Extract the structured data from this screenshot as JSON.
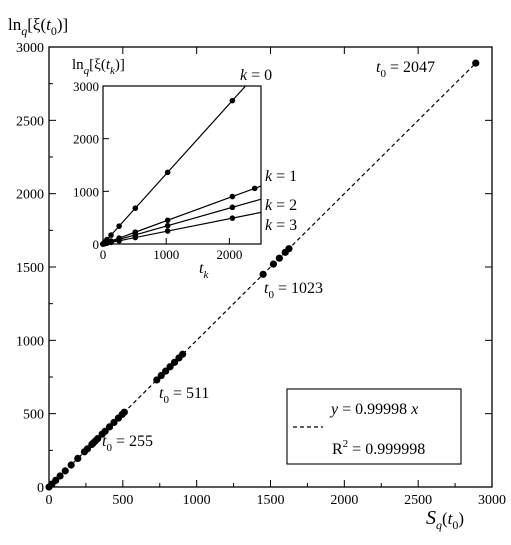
{
  "chart_data": [
    {
      "type": "scatter",
      "ylabel": {
        "base": "ln",
        "sub": "q",
        "rest_open": "[ξ(",
        "arg": "t",
        "arg_sub": "0",
        "rest_close": ")]"
      },
      "xlabel": {
        "base": "S",
        "sub": "q",
        "rest_open": "(",
        "arg": "t",
        "arg_sub": "0",
        "rest_close": ")"
      },
      "xlim": [
        0,
        3000
      ],
      "ylim": [
        0,
        3000
      ],
      "xticks": [
        "0",
        "500",
        "1000",
        "1500",
        "2000",
        "2500",
        "3000"
      ],
      "yticks": [
        "0",
        "500",
        "1000",
        "1500",
        "2000",
        "2500",
        "3000"
      ],
      "grid": false,
      "series": [
        {
          "values": [
            [
              0,
              0
            ],
            [
              20,
              20
            ],
            [
              45,
              45
            ],
            [
              75,
              75
            ],
            [
              110,
              110
            ],
            [
              150,
              150
            ],
            [
              195,
              195
            ],
            [
              240,
              240
            ],
            [
              260,
              260
            ],
            [
              290,
              290
            ],
            [
              300,
              300
            ],
            [
              315,
              315
            ],
            [
              330,
              330
            ],
            [
              360,
              360
            ],
            [
              380,
              380
            ],
            [
              410,
              410
            ],
            [
              440,
              440
            ],
            [
              470,
              470
            ],
            [
              495,
              495
            ],
            [
              510,
              510
            ],
            [
              730,
              730
            ],
            [
              760,
              760
            ],
            [
              790,
              790
            ],
            [
              820,
              820
            ],
            [
              850,
              850
            ],
            [
              880,
              880
            ],
            [
              905,
              905
            ],
            [
              1450,
              1450
            ],
            [
              1520,
              1520
            ],
            [
              1560,
              1560
            ],
            [
              1600,
              1600
            ],
            [
              1625,
              1625
            ],
            [
              2890,
              2890
            ]
          ]
        }
      ],
      "fit_line": {
        "slope": 0.99998,
        "x_range": [
          0,
          2890
        ]
      },
      "legend": {
        "position": "bottom-right",
        "line_style": "dashed",
        "line1": {
          "var": "y",
          "eq": " = 0.99998 ",
          "var2": "x"
        },
        "line2": {
          "base": "R",
          "sup": "2",
          "eq": " = 0.999998"
        }
      },
      "annotations": [
        {
          "t": "t",
          "sub": "0",
          "eq": " = 2047"
        },
        {
          "t": "t",
          "sub": "0",
          "eq": " = 1023"
        },
        {
          "t": "t",
          "sub": "0",
          "eq": " = 511"
        },
        {
          "t": "t",
          "sub": "0",
          "eq": " = 255"
        }
      ]
    },
    {
      "type": "scatter",
      "ylabel": {
        "base": "ln",
        "sub": "q",
        "rest_open": "[ξ(",
        "arg": "t",
        "arg_sub": "k",
        "rest_close": ")]"
      },
      "xlabel": {
        "arg": "t",
        "arg_sub": "k"
      },
      "xlim": [
        0,
        2500
      ],
      "ylim": [
        0,
        3000
      ],
      "xticks": [
        "0",
        "1000",
        "2000"
      ],
      "yticks": [
        "0",
        "1000",
        "2000",
        "3000"
      ],
      "grid": false,
      "series": [
        {
          "name": {
            "var": "k",
            "eq": " = 0"
          },
          "slope": 1.33,
          "x": [
            0,
            15,
            31,
            63,
            127,
            255,
            511,
            1023,
            2047
          ]
        },
        {
          "name": {
            "var": "k",
            "eq": " = 1"
          },
          "slope": 0.44,
          "x": [
            0,
            15,
            31,
            63,
            127,
            255,
            511,
            1023,
            2047,
            2400
          ]
        },
        {
          "name": {
            "var": "k",
            "eq": " = 2"
          },
          "slope": 0.34,
          "x": [
            0,
            15,
            31,
            63,
            127,
            255,
            511,
            1023,
            2047
          ]
        },
        {
          "name": {
            "var": "k",
            "eq": " = 3"
          },
          "slope": 0.24,
          "x": [
            0,
            15,
            31,
            63,
            127,
            255,
            511,
            1023,
            2047
          ]
        }
      ]
    }
  ]
}
